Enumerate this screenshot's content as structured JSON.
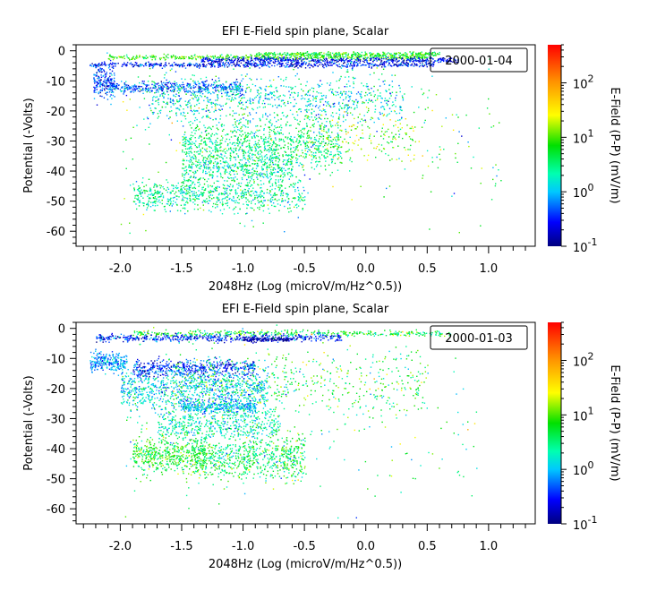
{
  "chart_data": [
    {
      "type": "scatter",
      "title": "EFI  E-Field spin plane, Scalar",
      "xlabel": "2048Hz (Log (microV/m/Hz^0.5))",
      "ylabel": "Potential (-Volts)",
      "colorbar_label": "E-Field (P-P) (mV/m)",
      "legend_text": "2000-01-04",
      "legend_placement": "top-right",
      "xlim": [
        -2.36,
        1.38
      ],
      "ylim": [
        -65,
        2
      ],
      "color_scale": "log",
      "clim": [
        0.1,
        500
      ],
      "x_ticks": [
        "-2.0",
        "-1.5",
        "-1.0",
        "-0.5",
        "0.0",
        "0.5",
        "1.0"
      ],
      "x_tick_values": [
        -2.0,
        -1.5,
        -1.0,
        -0.5,
        0.0,
        0.5,
        1.0
      ],
      "y_ticks": [
        "0",
        "-10",
        "-20",
        "-30",
        "-40",
        "-50",
        "-60"
      ],
      "y_tick_values": [
        0,
        -10,
        -20,
        -30,
        -40,
        -50,
        -60
      ],
      "colorbar_ticks": [
        {
          "base": "10",
          "exp": "2",
          "value": 100
        },
        {
          "base": "10",
          "exp": "1",
          "value": 10
        },
        {
          "base": "10",
          "exp": "0",
          "value": 1
        },
        {
          "base": "10",
          "exp": "-1",
          "value": 0.1
        }
      ],
      "point_clusters": [
        {
          "x": [
            -2.1,
            0.5
          ],
          "y": -2,
          "ysd": 0.4,
          "n": 500,
          "field": 8,
          "fsd": 0.25
        },
        {
          "x": [
            -0.9,
            0.6
          ],
          "y": -1,
          "ysd": 0.4,
          "n": 350,
          "field": 6,
          "fsd": 0.3
        },
        {
          "x": [
            -1.35,
            0.75
          ],
          "y": -3,
          "ysd": 0.5,
          "n": 550,
          "field": 0.25,
          "fsd": 0.25
        },
        {
          "x": [
            -2.25,
            0.55
          ],
          "y": -4.5,
          "ysd": 0.4,
          "n": 600,
          "field": 0.3,
          "fsd": 0.3
        },
        {
          "x": [
            -2.22,
            -2.05
          ],
          "y": -10,
          "ysd": 2.5,
          "n": 200,
          "field": 0.4,
          "fsd": 0.3
        },
        {
          "x": [
            -2.1,
            -1.0
          ],
          "y": -12,
          "ysd": 1.0,
          "n": 400,
          "field": 0.5,
          "fsd": 0.3
        },
        {
          "x": [
            -1.8,
            0.3
          ],
          "y": -16,
          "ysd": 4,
          "n": 900,
          "field": 1.5,
          "fsd": 0.35
        },
        {
          "x": [
            -1.5,
            -0.2
          ],
          "y": -31,
          "ysd": 4,
          "n": 900,
          "field": 3,
          "fsd": 0.3
        },
        {
          "x": [
            -1.5,
            -0.6
          ],
          "y": -39,
          "ysd": 3,
          "n": 500,
          "field": 2.5,
          "fsd": 0.3
        },
        {
          "x": [
            -1.9,
            -0.5
          ],
          "y": -48,
          "ysd": 2.5,
          "n": 700,
          "field": 2.5,
          "fsd": 0.3
        },
        {
          "x": [
            -0.5,
            0.4
          ],
          "y": -28,
          "ysd": 5,
          "n": 200,
          "field": 12,
          "fsd": 0.35
        },
        {
          "x": [
            -2.0,
            1.1
          ],
          "y": -30,
          "ysd": 14,
          "n": 250,
          "field": 5,
          "fsd": 0.5
        }
      ]
    },
    {
      "type": "scatter",
      "title": "EFI  E-Field spin plane, Scalar",
      "xlabel": "2048Hz (Log (microV/m/Hz^0.5))",
      "ylabel": "Potential (-Volts)",
      "colorbar_label": "E-Field (P-P) (mV/m)",
      "legend_text": "2000-01-03",
      "legend_placement": "top-right",
      "xlim": [
        -2.36,
        1.38
      ],
      "ylim": [
        -65,
        2
      ],
      "color_scale": "log",
      "clim": [
        0.1,
        500
      ],
      "x_ticks": [
        "-2.0",
        "-1.5",
        "-1.0",
        "-0.5",
        "0.0",
        "0.5",
        "1.0"
      ],
      "x_tick_values": [
        -2.0,
        -1.5,
        -1.0,
        -0.5,
        0.0,
        0.5,
        1.0
      ],
      "y_ticks": [
        "0",
        "-10",
        "-20",
        "-30",
        "-40",
        "-50",
        "-60"
      ],
      "y_tick_values": [
        0,
        -10,
        -20,
        -30,
        -40,
        -50,
        -60
      ],
      "colorbar_ticks": [
        {
          "base": "10",
          "exp": "2",
          "value": 100
        },
        {
          "base": "10",
          "exp": "1",
          "value": 10
        },
        {
          "base": "10",
          "exp": "0",
          "value": 1
        },
        {
          "base": "10",
          "exp": "-1",
          "value": 0.1
        }
      ],
      "point_clusters": [
        {
          "x": [
            -1.9,
            0.7
          ],
          "y": -1.5,
          "ysd": 0.5,
          "n": 400,
          "field": 5,
          "fsd": 0.35
        },
        {
          "x": [
            -2.2,
            -0.2
          ],
          "y": -3,
          "ysd": 0.6,
          "n": 500,
          "field": 0.3,
          "fsd": 0.3
        },
        {
          "x": [
            -1.0,
            -0.6
          ],
          "y": -3.5,
          "ysd": 0.4,
          "n": 120,
          "field": 0.12,
          "fsd": 0.15
        },
        {
          "x": [
            -2.25,
            -1.95
          ],
          "y": -11,
          "ysd": 1.5,
          "n": 250,
          "field": 0.8,
          "fsd": 0.25
        },
        {
          "x": [
            -1.9,
            -0.9
          ],
          "y": -13,
          "ysd": 1.5,
          "n": 500,
          "field": 0.35,
          "fsd": 0.3
        },
        {
          "x": [
            -2.0,
            -0.8
          ],
          "y": -20,
          "ysd": 3.5,
          "n": 900,
          "field": 1.2,
          "fsd": 0.3
        },
        {
          "x": [
            -1.5,
            -0.9
          ],
          "y": -26,
          "ysd": 1.0,
          "n": 300,
          "field": 1.0,
          "fsd": 0.25
        },
        {
          "x": [
            -1.6,
            0.5
          ],
          "y": -18,
          "ysd": 5,
          "n": 500,
          "field": 5,
          "fsd": 0.4
        },
        {
          "x": [
            -1.7,
            -0.7
          ],
          "y": -32,
          "ysd": 3,
          "n": 500,
          "field": 2,
          "fsd": 0.3
        },
        {
          "x": [
            -1.9,
            -1.3
          ],
          "y": -42,
          "ysd": 3,
          "n": 500,
          "field": 6,
          "fsd": 0.3
        },
        {
          "x": [
            -1.4,
            -0.5
          ],
          "y": -43,
          "ysd": 3.5,
          "n": 700,
          "field": 4,
          "fsd": 0.35
        },
        {
          "x": [
            -2.0,
            0.9
          ],
          "y": -30,
          "ysd": 14,
          "n": 250,
          "field": 4,
          "fsd": 0.5
        }
      ]
    }
  ]
}
